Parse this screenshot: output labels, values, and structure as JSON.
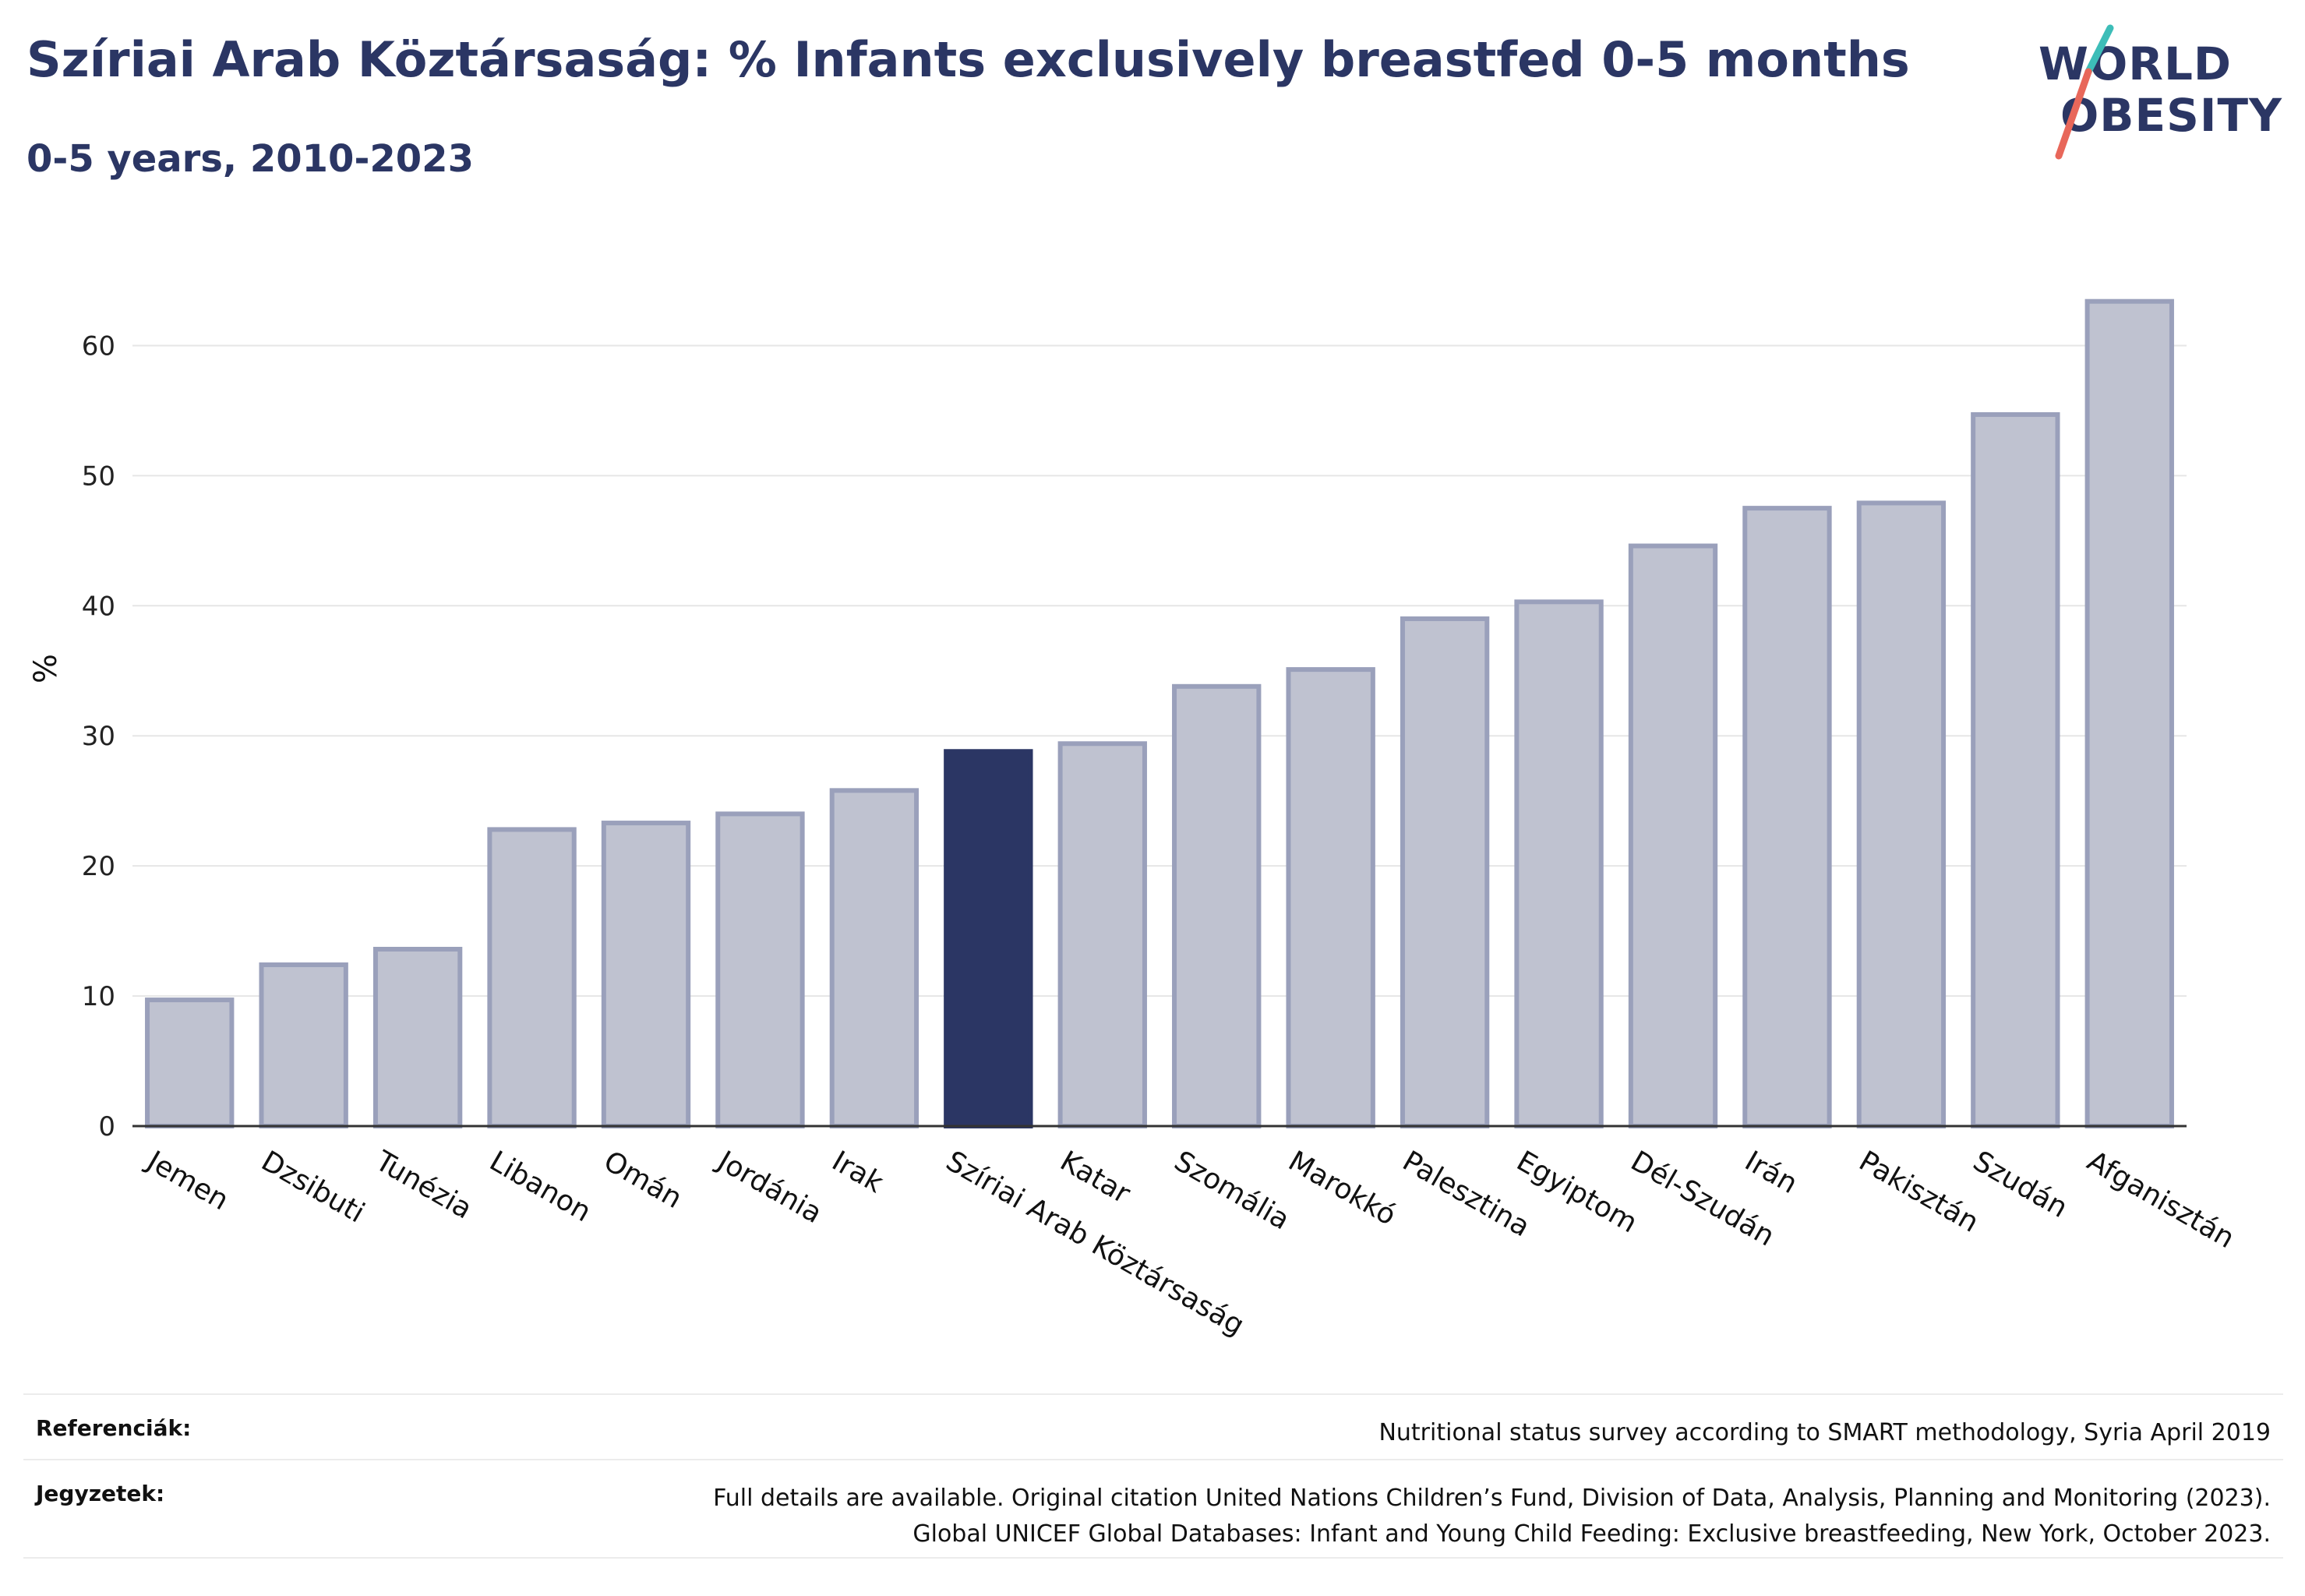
{
  "header": {
    "title": "Szíriai Arab Köztársaság: % Infants exclusively breastfed 0-5 months",
    "subtitle": "0-5 years, 2010-2023"
  },
  "logo": {
    "line1": "WORLD",
    "line2": "OBESITY"
  },
  "colors": {
    "highlight": "#2b3664",
    "bar_fill": "#bfc2d0",
    "bar_stroke": "#9aa0bb",
    "logo_teal": "#3dbdb8",
    "logo_red": "#e8675a",
    "grid": "#e6e6e6"
  },
  "chart_data": {
    "type": "bar",
    "ylabel": "%",
    "xlabel": "",
    "ylim": [
      0,
      65
    ],
    "yticks": [
      0,
      10,
      20,
      30,
      40,
      50,
      60
    ],
    "grid": true,
    "highlight": "Szíriai Arab Köztársaság",
    "categories": [
      "Jemen",
      "Dzsibuti",
      "Tunézia",
      "Libanon",
      "Omán",
      "Jordánia",
      "Irak",
      "Szíriai Arab Köztársaság",
      "Katar",
      "Szomália",
      "Marokkó",
      "Palesztina",
      "Egyiptom",
      "Dél-Szudán",
      "Irán",
      "Pakisztán",
      "Szudán",
      "Afganisztán"
    ],
    "values": [
      9.7,
      12.4,
      13.6,
      22.8,
      23.3,
      24.0,
      25.8,
      28.8,
      29.4,
      33.8,
      35.1,
      39.0,
      40.3,
      44.6,
      47.5,
      47.9,
      54.7,
      63.4
    ]
  },
  "footer": {
    "references_label": "Referenciák:",
    "references_text": "Nutritional status survey according to SMART methodology, Syria April 2019",
    "notes_label": "Jegyzetek:",
    "notes_line1": "Full details are available. Original citation United Nations Children’s Fund, Division of Data, Analysis, Planning and Monitoring (2023).",
    "notes_line2": "Global UNICEF Global Databases: Infant and Young Child Feeding: Exclusive breastfeeding, New York, October 2023."
  }
}
